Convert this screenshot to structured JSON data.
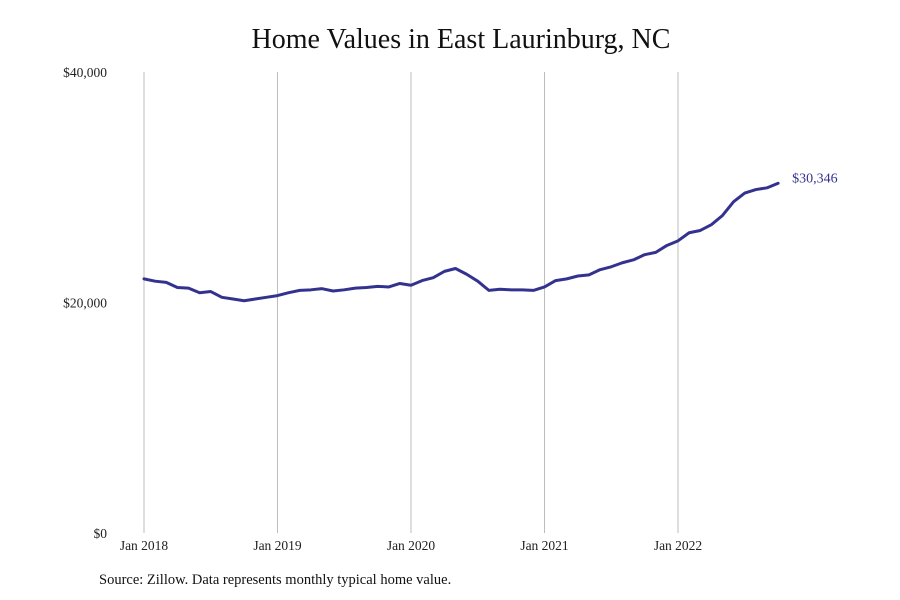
{
  "chart_data": {
    "type": "line",
    "title": "Home Values in East Laurinburg, NC",
    "note": "Source: Zillow. Data represents monthly typical home value.",
    "xlabel": "",
    "ylabel": "",
    "x_ticks": [
      {
        "x": "2018-01",
        "label": "Jan 2018"
      },
      {
        "x": "2019-01",
        "label": "Jan 2019"
      },
      {
        "x": "2020-01",
        "label": "Jan 2020"
      },
      {
        "x": "2021-01",
        "label": "Jan 2021"
      },
      {
        "x": "2022-01",
        "label": "Jan 2022"
      }
    ],
    "y_ticks": [
      {
        "value": 0,
        "label": "$0"
      },
      {
        "value": 20000,
        "label": "$20,000"
      },
      {
        "value": 40000,
        "label": "$40,000"
      }
    ],
    "ylim": [
      0,
      40000
    ],
    "xlim": [
      "2018-01",
      "2022-12"
    ],
    "grid": "vertical",
    "line_color": "#33338f",
    "grid_color": "#bdbdbd",
    "end_label": "$30,346",
    "series": [
      {
        "x": [
          "2018-01",
          "2018-02",
          "2018-03",
          "2018-04",
          "2018-05",
          "2018-06",
          "2018-07",
          "2018-08",
          "2018-09",
          "2018-10",
          "2018-11",
          "2018-12",
          "2019-01",
          "2019-02",
          "2019-03",
          "2019-04",
          "2019-05",
          "2019-06",
          "2019-07",
          "2019-08",
          "2019-09",
          "2019-10",
          "2019-11",
          "2019-12",
          "2020-01",
          "2020-02",
          "2020-03",
          "2020-04",
          "2020-05",
          "2020-06",
          "2020-07",
          "2020-08",
          "2020-09",
          "2020-10",
          "2020-11",
          "2020-12",
          "2021-01",
          "2021-02",
          "2021-03",
          "2021-04",
          "2021-05",
          "2021-06",
          "2021-07",
          "2021-08",
          "2021-09",
          "2021-10",
          "2021-11",
          "2021-12",
          "2022-01",
          "2022-02",
          "2022-03",
          "2022-04",
          "2022-05",
          "2022-06",
          "2022-07",
          "2022-08",
          "2022-09",
          "2022-10"
        ],
        "values": [
          22050,
          21850,
          21750,
          21300,
          21250,
          20850,
          20950,
          20450,
          20300,
          20150,
          20300,
          20450,
          20600,
          20850,
          21050,
          21100,
          21200,
          21000,
          21100,
          21250,
          21300,
          21400,
          21350,
          21650,
          21500,
          21900,
          22150,
          22700,
          22950,
          22450,
          21850,
          21050,
          21150,
          21100,
          21100,
          21050,
          21350,
          21900,
          22050,
          22300,
          22400,
          22850,
          23100,
          23450,
          23700,
          24150,
          24350,
          24950,
          25350,
          26050,
          26250,
          26750,
          27550,
          28750,
          29500,
          29800,
          29950,
          30346
        ]
      }
    ]
  }
}
